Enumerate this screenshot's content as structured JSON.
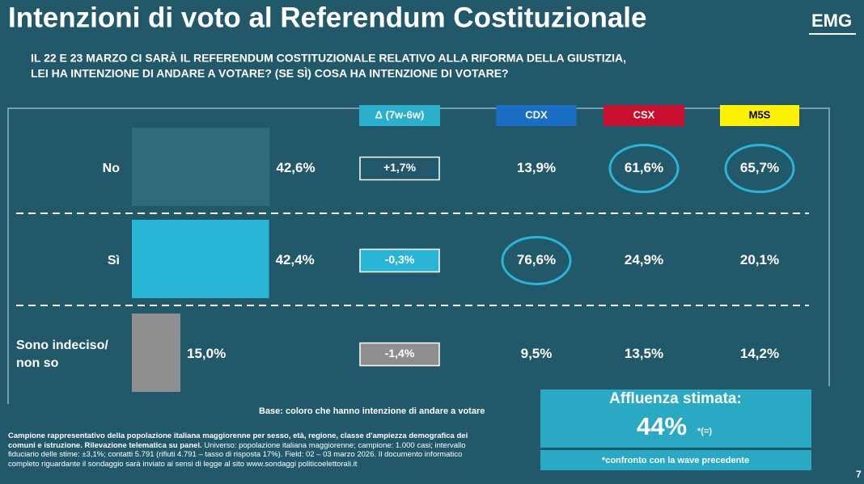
{
  "header": {
    "title": "Intenzioni di voto al Referendum Costituzionale",
    "logo": "EMG"
  },
  "question": [
    "IL 22 E 23 MARZO CI SARÀ IL REFERENDUM COSTITUZIONALE RELATIVO ALLA RIFORMA DELLA GIUSTIZIA,",
    "LEI HA INTENZIONE DI ANDARE A VOTARE? (SE SÌ) COSA HA INTENZIONE DI VOTARE?"
  ],
  "chart_data": {
    "type": "bar",
    "orientation": "horizontal",
    "categories": [
      "No",
      "Sì",
      "Sono indeciso/ non so"
    ],
    "values": [
      42.6,
      42.4,
      15.0
    ],
    "value_labels": [
      "42,6%",
      "42,4%",
      "15,0%"
    ],
    "colors": [
      "#2f6b7b",
      "#29b5d6",
      "#8e8e8e"
    ]
  },
  "table": {
    "columns": [
      "Δ (7w-6w)",
      "CDX",
      "CSX",
      "M5S"
    ],
    "column_colors": [
      "#2ab0cc",
      "#1a6fc4",
      "#c8102e",
      "#fff200"
    ],
    "column_text_colors": [
      "#ffffff",
      "#ffffff",
      "#ffffff",
      "#000000"
    ],
    "rows": [
      [
        "+1,7%",
        "13,9%",
        "61,6%",
        "65,7%"
      ],
      [
        "-0,3%",
        "76,6%",
        "24,9%",
        "20,1%"
      ],
      [
        "-1,4%",
        "9,5%",
        "13,5%",
        "14,2%"
      ]
    ],
    "first_column_fills": [
      "none",
      "#29b5d6",
      "#8e8e8e"
    ],
    "circled": [
      [
        false,
        false,
        true,
        true
      ],
      [
        false,
        true,
        false,
        false
      ],
      [
        false,
        false,
        false,
        false
      ]
    ]
  },
  "base_note": "Base: coloro che hanno intenzione di andare a votare",
  "turnout": {
    "label": "Affluenza stimata:",
    "value": "44%",
    "suffix": "*(=)",
    "note": "*confronto con la wave precedente"
  },
  "footnote": {
    "bold": "Campione rappresentativo della popolazione italiana maggiorenne per sesso, età, regione, classe d'ampiezza demografica dei comuni e istruzione. Rilevazione telematica su panel.",
    "normal": "Universo: popolazione italiana maggiorenne; campione: 1.000 casi; intervallo fiduciario delle stime: ±3,1%; contatti 5.791 (rifiuti 4.791 – tasso di risposta 17%). Field: 02 – 03 marzo 2026. Il documento informatico completo riguardante il sondaggio sarà inviato ai sensi di legge al sito www.sondaggi politicoelettorali.it"
  },
  "page_number": "7"
}
